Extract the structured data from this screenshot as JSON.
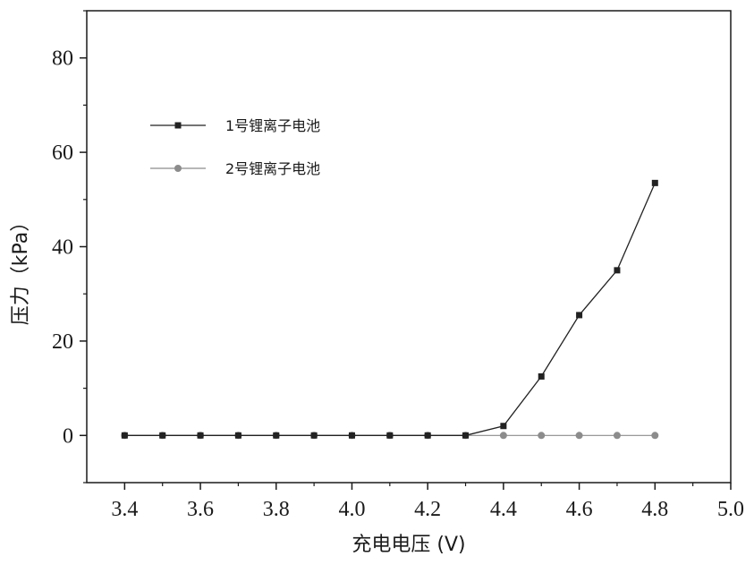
{
  "chart_data": {
    "type": "line",
    "xlabel": "充电电压 (V)",
    "ylabel": "压力（kPa）",
    "xlim": [
      3.3,
      5.0
    ],
    "ylim": [
      -10,
      90
    ],
    "x_ticks": [
      "3.4",
      "3.6",
      "3.8",
      "4.0",
      "4.2",
      "4.4",
      "4.6",
      "4.8",
      "5.0"
    ],
    "y_ticks": [
      "0",
      "20",
      "40",
      "60",
      "80"
    ],
    "legend_position": "upper-left",
    "grid": false,
    "series": [
      {
        "name": "1号锂离子电池",
        "marker": "square",
        "color": "#222222",
        "x": [
          3.4,
          3.5,
          3.6,
          3.7,
          3.8,
          3.9,
          4.0,
          4.1,
          4.2,
          4.3,
          4.4,
          4.5,
          4.6,
          4.7,
          4.8
        ],
        "y": [
          0,
          0,
          0,
          0,
          0,
          0,
          0,
          0,
          0,
          0,
          2,
          12.5,
          25.5,
          35,
          53.5
        ]
      },
      {
        "name": "2号锂离子电池",
        "marker": "circle",
        "color": "#8c8c8c",
        "x": [
          3.4,
          3.5,
          3.6,
          3.7,
          3.8,
          3.9,
          4.0,
          4.1,
          4.2,
          4.3,
          4.4,
          4.5,
          4.6,
          4.7,
          4.8
        ],
        "y": [
          0,
          0,
          0,
          0,
          0,
          0,
          0,
          0,
          0,
          0,
          0,
          0,
          0,
          0,
          0
        ]
      }
    ]
  }
}
